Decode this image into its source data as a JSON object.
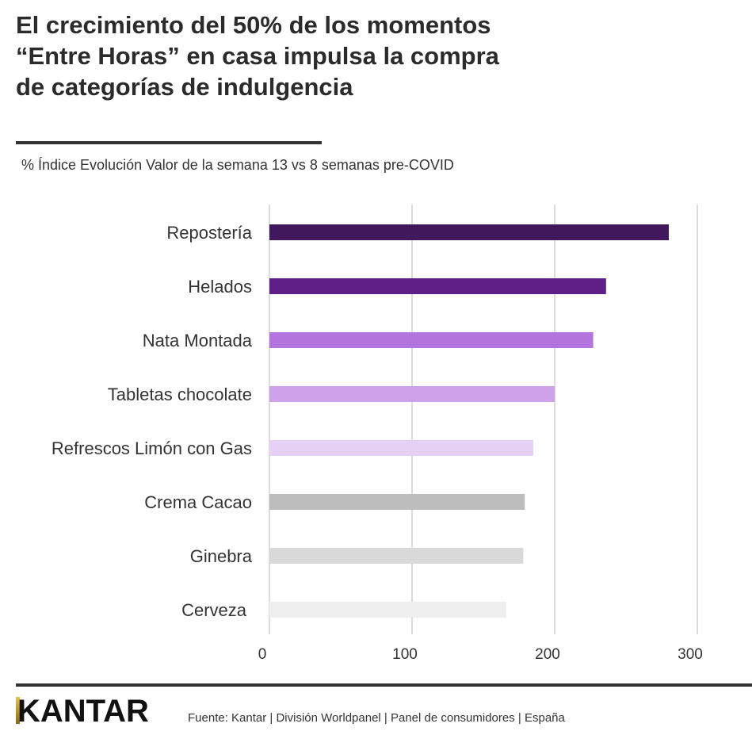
{
  "header": {
    "title_lines": [
      "El crecimiento del 50% de los momentos",
      "“Entre Horas” en casa impulsa la compra",
      "de categorías de indulgencia"
    ],
    "subtitle": "% Índice Evolución Valor de la semana 13 vs 8 semanas pre-COVID"
  },
  "chart_data": {
    "type": "bar",
    "orientation": "horizontal",
    "categories": [
      "Repostería",
      "Helados",
      "Nata Montada",
      "Tabletas chocolate",
      "Refrescos Limón con Gas",
      "Crema Cacao",
      "Ginebra",
      "Cerveza"
    ],
    "values": [
      280,
      236,
      227,
      200,
      185,
      179,
      178,
      166
    ],
    "colors": [
      "#41185c",
      "#5f1f86",
      "#b375dd",
      "#cda2ea",
      "#e6d0f4",
      "#bdbdbd",
      "#d9d9d9",
      "#efefef"
    ],
    "xlim": [
      0,
      300
    ],
    "xticks": [
      "0",
      "100",
      "200",
      "300"
    ],
    "xlabel": "",
    "ylabel": "",
    "grid": "vertical",
    "legend": "none"
  },
  "footer": {
    "logo": "KANTAR",
    "source": "Fuente: Kantar | División Worldpanel | Panel de consumidores | España"
  }
}
